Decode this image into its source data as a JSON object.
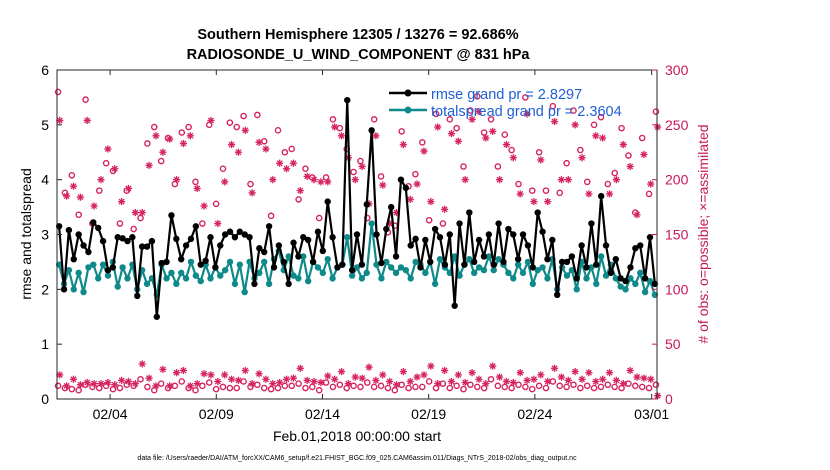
{
  "chart_data": {
    "type": "line",
    "title": "Southern Hemisphere 12305 / 13276 = 92.686%",
    "subtitle": "RADIOSONDE_U_WIND_COMPONENT @ 831 hPa",
    "xlabel": "Feb.01,2018 00:00:00 start",
    "ylabel_left": "rmse and totalspread",
    "ylabel_right": "# of obs: o=possible; ×=assimilated",
    "footer": "data file: /Users/raeder/DAI/ATM_forcXX/CAM6_setup/f.e21.FHIST_BGC.f09_025.CAM6assim.011/Diags_NTrS_2018-02/obs_diag_output.nc",
    "xlim": [
      1,
      29.25
    ],
    "ylim_left": [
      0,
      6
    ],
    "ylim_right": [
      0,
      300
    ],
    "xticks": [
      3.5,
      8.5,
      13.5,
      18.5,
      23.5,
      29
    ],
    "xtick_labels": [
      "02/04",
      "02/09",
      "02/14",
      "02/19",
      "02/24",
      "03/01"
    ],
    "yticks_left": [
      0,
      1,
      2,
      3,
      4,
      5,
      6
    ],
    "yticks_right": [
      0,
      50,
      100,
      150,
      200,
      250,
      300
    ],
    "legend_position": "top-right",
    "colors": {
      "rmse": "#000000",
      "totalspread": "#0f8a8a",
      "obs": "#d6245e",
      "legend_text": "#1f5fd6",
      "axis_right": "#c8185a"
    },
    "series": [
      {
        "name": "rmse grand pr = 2.8297",
        "values": [
          3.15,
          2.0,
          3.08,
          2.55,
          3.0,
          2.8,
          2.68,
          3.22,
          3.12,
          2.88,
          2.35,
          2.4,
          2.95,
          2.93,
          2.88,
          2.95,
          1.88,
          2.78,
          2.78,
          2.88,
          1.5,
          2.48,
          2.5,
          3.35,
          2.92,
          2.55,
          2.8,
          2.92,
          3.15,
          2.45,
          2.52,
          2.95,
          2.4,
          2.8,
          3.0,
          3.05,
          2.95,
          3.05,
          3.0,
          2.95,
          2.1,
          2.75,
          2.68,
          3.15,
          2.4,
          2.8,
          2.5,
          2.1,
          2.85,
          2.6,
          2.95,
          2.9,
          2.5,
          3.05,
          2.7,
          3.6,
          2.95,
          2.4,
          2.45,
          5.45,
          2.35,
          3.0,
          2.45,
          3.55,
          4.9,
          3.0,
          2.48,
          3.1,
          3.5,
          2.6,
          4.0,
          3.85,
          2.8,
          2.92,
          2.4,
          2.9,
          2.5,
          3.1,
          2.95,
          2.45,
          3.0,
          1.7,
          3.2,
          2.45,
          3.4,
          2.5,
          2.9,
          2.6,
          3.0,
          2.45,
          3.2,
          2.5,
          3.1,
          3.0,
          2.55,
          3.0,
          2.8,
          2.4,
          3.4,
          3.05,
          2.55,
          2.9,
          1.9,
          2.5,
          2.5,
          2.6,
          2.2,
          2.8,
          2.4,
          3.2,
          2.45,
          3.7,
          2.8,
          2.3,
          2.55,
          2.2,
          2.15,
          2.4,
          2.75,
          2.8,
          2.2,
          2.95,
          2.1
        ],
        "marker": "o-filled"
      },
      {
        "name": "totalspread grand pr = 2.3604",
        "values": [
          2.45,
          2.1,
          2.35,
          2.0,
          2.3,
          1.95,
          2.4,
          2.45,
          2.2,
          2.45,
          2.25,
          2.5,
          2.05,
          2.4,
          2.2,
          2.45,
          2.0,
          2.35,
          2.1,
          2.2,
          1.9,
          2.45,
          2.2,
          2.3,
          2.1,
          2.3,
          2.2,
          2.5,
          2.25,
          2.15,
          2.45,
          2.2,
          2.4,
          2.25,
          2.35,
          2.5,
          2.1,
          2.45,
          1.95,
          2.5,
          2.2,
          2.3,
          2.5,
          2.1,
          2.55,
          2.7,
          2.35,
          2.6,
          2.25,
          2.2,
          2.6,
          2.15,
          2.5,
          2.4,
          2.3,
          2.55,
          2.2,
          2.4,
          2.45,
          2.95,
          2.25,
          2.4,
          2.2,
          2.3,
          3.2,
          2.45,
          2.2,
          2.5,
          2.4,
          2.3,
          2.4,
          2.35,
          2.2,
          2.5,
          2.45,
          2.3,
          2.5,
          2.1,
          2.55,
          2.4,
          2.3,
          2.6,
          2.25,
          2.45,
          2.55,
          2.3,
          2.4,
          2.35,
          2.6,
          2.35,
          2.55,
          2.45,
          2.3,
          2.2,
          2.45,
          2.3,
          2.5,
          2.1,
          2.35,
          2.4,
          2.2,
          2.55,
          2.0,
          2.4,
          2.25,
          2.35,
          2.0,
          2.5,
          2.2,
          2.4,
          2.1,
          2.6,
          2.25,
          2.45,
          2.2,
          2.05,
          2.0,
          2.2,
          2.1,
          2.3,
          1.95,
          2.15,
          1.9
        ],
        "marker": "o-filled"
      }
    ],
    "obs_possible_high": [
      280,
      188,
      204,
      168,
      273,
      160,
      190,
      215,
      208,
      160,
      190,
      155,
      165,
      233,
      248,
      217,
      238,
      196,
      243,
      248,
      198,
      160,
      250,
      178,
      210,
      252,
      248,
      258,
      196,
      259,
      235,
      167,
      245,
      225,
      228,
      182,
      210,
      202,
      165,
      202,
      255,
      247,
      228,
      207,
      217,
      165,
      255,
      203,
      152,
      158,
      244,
      194,
      205,
      234,
      163,
      260,
      160,
      255,
      247,
      212,
      263,
      276,
      243,
      255,
      212,
      241,
      227,
      196,
      275,
      190,
      225,
      190,
      267,
      188,
      215,
      263,
      227,
      198,
      250,
      257,
      196,
      206,
      247,
      222,
      170,
      238,
      187,
      262
    ],
    "obs_assimilated_high": [
      254,
      185,
      194,
      184,
      254,
      176,
      200,
      228,
      210,
      180,
      192,
      170,
      170,
      213,
      240,
      225,
      237,
      200,
      233,
      240,
      192,
      176,
      254,
      160,
      198,
      232,
      225,
      245,
      188,
      234,
      228,
      200,
      215,
      210,
      215,
      190,
      203,
      200,
      198,
      198,
      248,
      240,
      220,
      200,
      212,
      178,
      240,
      195,
      160,
      170,
      232,
      182,
      196,
      226,
      180,
      248,
      173,
      242,
      235,
      200,
      255,
      262,
      238,
      244,
      200,
      232,
      220,
      187,
      260,
      180,
      218,
      180,
      253,
      200,
      200,
      250,
      220,
      187,
      240,
      238,
      187,
      200,
      232,
      212,
      168,
      223,
      196,
      248
    ],
    "obs_possible_low": [
      12,
      10,
      9,
      8,
      13,
      11,
      10,
      12,
      9,
      10,
      13,
      12,
      18,
      11,
      8,
      14,
      10,
      12,
      16,
      10,
      8,
      12,
      15,
      9,
      11,
      10,
      10,
      16,
      11,
      13,
      10,
      9,
      10,
      12,
      12,
      14,
      10,
      11,
      8,
      15,
      11,
      13,
      10,
      12,
      11,
      15,
      11,
      12,
      10,
      8,
      13,
      10,
      11,
      11,
      16,
      10,
      14,
      10,
      12,
      9,
      13,
      11,
      10,
      18,
      12,
      11,
      10,
      13,
      11,
      9,
      12,
      10,
      16,
      12,
      11,
      13,
      10,
      12,
      10,
      11,
      13,
      11,
      10,
      14,
      12,
      11,
      10,
      13
    ],
    "obs_assimilated_low": [
      22,
      12,
      18,
      13,
      15,
      14,
      14,
      15,
      13,
      17,
      16,
      14,
      32,
      19,
      12,
      27,
      12,
      24,
      26,
      12,
      14,
      23,
      22,
      16,
      22,
      18,
      17,
      26,
      14,
      23,
      18,
      14,
      15,
      18,
      19,
      28,
      17,
      16,
      15,
      21,
      18,
      25,
      14,
      20,
      19,
      29,
      17,
      22,
      16,
      13,
      25,
      16,
      20,
      22,
      30,
      14,
      26,
      16,
      22,
      15,
      24,
      18,
      14,
      30,
      20,
      16,
      15,
      24,
      17,
      18,
      22,
      16,
      28,
      20,
      17,
      25,
      18,
      24,
      16,
      18,
      24,
      17,
      14,
      26,
      20,
      19,
      18,
      3
    ]
  }
}
